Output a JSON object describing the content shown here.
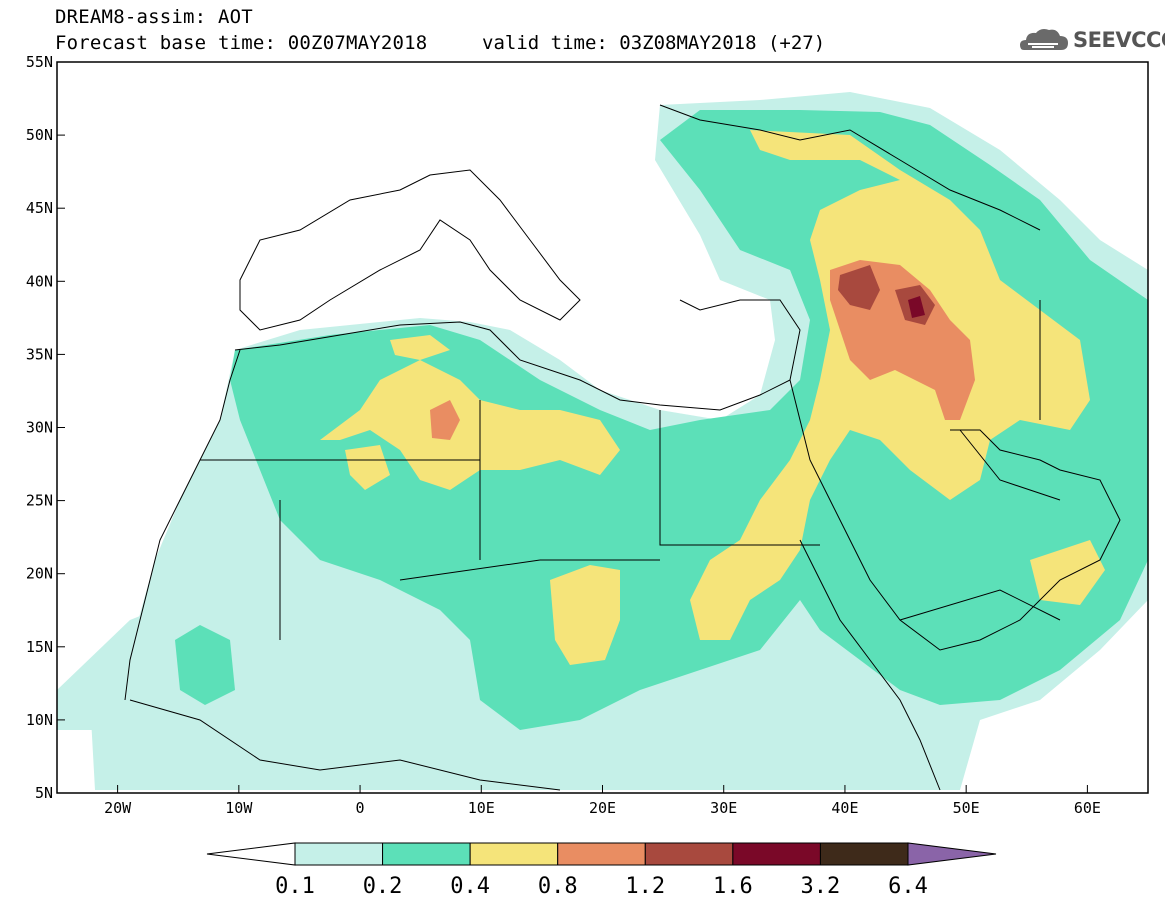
{
  "header": {
    "line1": "DREAM8-assim: AOT",
    "line2": "Forecast base time: 00Z07MAY2018",
    "valid_time": "valid time: 03Z08MAY2018 (+27)",
    "logo_text": "SEEVCCC"
  },
  "map": {
    "variable": "AOT",
    "lon_range": [
      -25,
      65
    ],
    "lat_range": [
      5,
      55
    ],
    "y_ticks": [
      "55N",
      "50N",
      "45N",
      "40N",
      "35N",
      "30N",
      "25N",
      "20N",
      "15N",
      "10N",
      "5N"
    ],
    "x_ticks": [
      "20W",
      "10W",
      "0",
      "10E",
      "20E",
      "30E",
      "40E",
      "50E",
      "60E"
    ]
  },
  "colorbar": {
    "levels": [
      "0.1",
      "0.2",
      "0.4",
      "0.8",
      "1.2",
      "1.6",
      "3.2",
      "6.4"
    ],
    "colors": [
      "#ffffff",
      "#c5f0e8",
      "#5ce0b8",
      "#f5e47a",
      "#e98d62",
      "#a8493e",
      "#7a0828",
      "#3e2a1a",
      "#8a64a8"
    ]
  }
}
